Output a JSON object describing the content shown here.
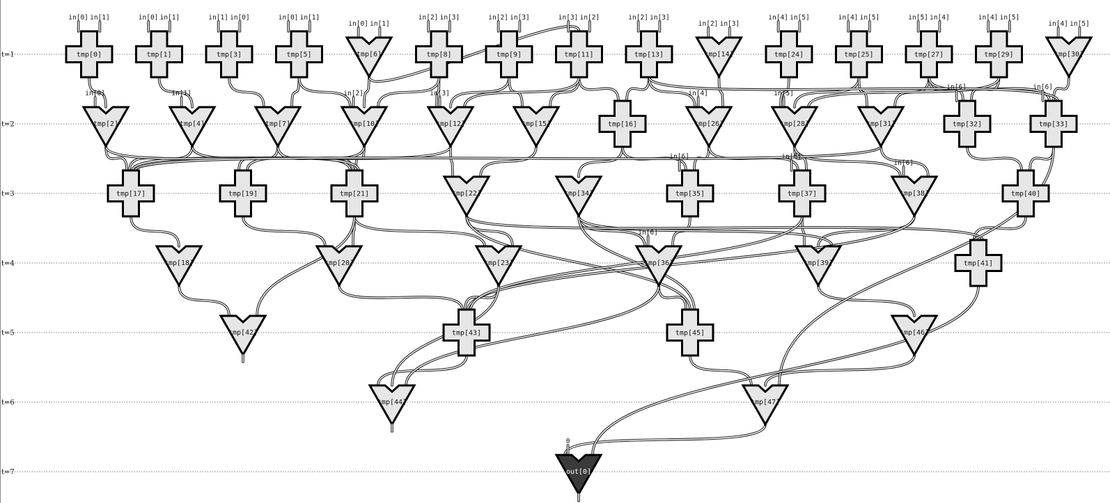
{
  "colors": {
    "gate_fill": "#e6e6e6",
    "output_fill": "#3a3a3a",
    "gate_stroke": "#000000",
    "grid": "#555555"
  },
  "rows": [
    {
      "label": "t=1"
    },
    {
      "label": "t=2"
    },
    {
      "label": "t=3"
    },
    {
      "label": "t=4"
    },
    {
      "label": "t=5"
    },
    {
      "label": "t=6"
    },
    {
      "label": "t=7"
    }
  ],
  "gates": [
    {
      "id": "tmp0",
      "label": "tmp[0]",
      "shape": "cross",
      "row": 1,
      "col": 0,
      "inputs": [
        "in[0]",
        "in[1]"
      ]
    },
    {
      "id": "tmp1",
      "label": "tmp[1]",
      "shape": "cross",
      "row": 1,
      "col": 1,
      "inputs": [
        "in[0]",
        "in[1]"
      ]
    },
    {
      "id": "tmp3",
      "label": "tmp[3]",
      "shape": "cross",
      "row": 1,
      "col": 2,
      "inputs": [
        "in[1]",
        "in[0]"
      ]
    },
    {
      "id": "tmp5",
      "label": "tmp[5]",
      "shape": "cross",
      "row": 1,
      "col": 3,
      "inputs": [
        "in[0]",
        "in[1]"
      ]
    },
    {
      "id": "tmp6",
      "label": "tmp[6]",
      "shape": "tri",
      "row": 1,
      "col": 4,
      "inputs": [
        "in[0]",
        "in[1]"
      ]
    },
    {
      "id": "tmp8",
      "label": "tmp[8]",
      "shape": "cross",
      "row": 1,
      "col": 5,
      "inputs": [
        "in[2]",
        "in[3]"
      ]
    },
    {
      "id": "tmp9",
      "label": "tmp[9]",
      "shape": "cross",
      "row": 1,
      "col": 6,
      "inputs": [
        "in[2]",
        "in[3]"
      ]
    },
    {
      "id": "tmp11",
      "label": "tmp[11]",
      "shape": "cross",
      "row": 1,
      "col": 7,
      "inputs": [
        "in[3]",
        "in[2]"
      ]
    },
    {
      "id": "tmp13",
      "label": "tmp[13]",
      "shape": "cross",
      "row": 1,
      "col": 8,
      "inputs": [
        "in[2]",
        "in[3]"
      ]
    },
    {
      "id": "tmp14",
      "label": "tmp[14]",
      "shape": "tri",
      "row": 1,
      "col": 9,
      "inputs": [
        "in[2]",
        "in[3]"
      ]
    },
    {
      "id": "tmp24",
      "label": "tmp[24]",
      "shape": "cross",
      "row": 1,
      "col": 10,
      "inputs": [
        "in[4]",
        "in[5]"
      ]
    },
    {
      "id": "tmp25",
      "label": "tmp[25]",
      "shape": "cross",
      "row": 1,
      "col": 11,
      "inputs": [
        "in[4]",
        "in[5]"
      ]
    },
    {
      "id": "tmp27",
      "label": "tmp[27]",
      "shape": "cross",
      "row": 1,
      "col": 12,
      "inputs": [
        "in[5]",
        "in[4]"
      ]
    },
    {
      "id": "tmp29",
      "label": "tmp[29]",
      "shape": "cross",
      "row": 1,
      "col": 13,
      "inputs": [
        "in[4]",
        "in[5]"
      ]
    },
    {
      "id": "tmp30",
      "label": "tmp[30]",
      "shape": "tri",
      "row": 1,
      "col": 14,
      "inputs": [
        "in[4]",
        "in[5]"
      ]
    },
    {
      "id": "tmp2",
      "label": "tmp[2]",
      "shape": "tri",
      "row": 2,
      "col": 0.5,
      "inputs": [
        "in[0]"
      ]
    },
    {
      "id": "tmp4",
      "label": "tmp[4]",
      "shape": "tri",
      "row": 2,
      "col": 1.5,
      "inputs": [
        "in[1]"
      ]
    },
    {
      "id": "tmp7",
      "label": "tmp[7]",
      "shape": "tri",
      "row": 2,
      "col": 2.5,
      "inputs": []
    },
    {
      "id": "tmp10",
      "label": "tmp[10]",
      "shape": "tri",
      "row": 2,
      "col": 3.5,
      "inputs": [
        "in[2]"
      ]
    },
    {
      "id": "tmp12",
      "label": "tmp[12]",
      "shape": "tri",
      "row": 2,
      "col": 4.5,
      "inputs": [
        "in[3]"
      ]
    },
    {
      "id": "tmp15",
      "label": "tmp[15]",
      "shape": "tri",
      "row": 2,
      "col": 5.5,
      "inputs": []
    },
    {
      "id": "tmp16",
      "label": "tmp[16]",
      "shape": "cross",
      "row": 2,
      "col": 6.5,
      "inputs": []
    },
    {
      "id": "tmp26",
      "label": "tmp[26]",
      "shape": "tri",
      "row": 2,
      "col": 7.5,
      "inputs": [
        "in[4]"
      ]
    },
    {
      "id": "tmp28",
      "label": "tmp[28]",
      "shape": "tri",
      "row": 2,
      "col": 8.5,
      "inputs": [
        "in[5]"
      ]
    },
    {
      "id": "tmp31",
      "label": "tmp[31]",
      "shape": "tri",
      "row": 2,
      "col": 9.5,
      "inputs": []
    },
    {
      "id": "tmp32",
      "label": "tmp[32]",
      "shape": "cross",
      "row": 2,
      "col": 10.5,
      "inputs": [
        "in[6]"
      ]
    },
    {
      "id": "tmp33",
      "label": "tmp[33]",
      "shape": "cross",
      "row": 2,
      "col": 11.5,
      "inputs": [
        "in[6]"
      ]
    },
    {
      "id": "tmp17",
      "label": "tmp[17]",
      "shape": "cross",
      "row": 3,
      "col": 0,
      "inputs": []
    },
    {
      "id": "tmp19",
      "label": "tmp[19]",
      "shape": "cross",
      "row": 3,
      "col": 1,
      "inputs": []
    },
    {
      "id": "tmp21",
      "label": "tmp[21]",
      "shape": "cross",
      "row": 3,
      "col": 2,
      "inputs": []
    },
    {
      "id": "tmp22",
      "label": "tmp[22]",
      "shape": "tri",
      "row": 3,
      "col": 3,
      "inputs": []
    },
    {
      "id": "tmp34",
      "label": "tmp[34]",
      "shape": "tri",
      "row": 3,
      "col": 4,
      "inputs": []
    },
    {
      "id": "tmp35",
      "label": "tmp[35]",
      "shape": "cross",
      "row": 3,
      "col": 5,
      "inputs": [
        "in[6]"
      ]
    },
    {
      "id": "tmp37",
      "label": "tmp[37]",
      "shape": "cross",
      "row": 3,
      "col": 6,
      "inputs": [
        "in[6]"
      ]
    },
    {
      "id": "tmp38",
      "label": "tmp[38]",
      "shape": "tri",
      "row": 3,
      "col": 7,
      "inputs": [
        "in[6]"
      ]
    },
    {
      "id": "tmp40",
      "label": "tmp[40]",
      "shape": "cross",
      "row": 3,
      "col": 8,
      "inputs": []
    },
    {
      "id": "tmp18",
      "label": "tmp[18]",
      "shape": "tri",
      "row": 4,
      "col": 0,
      "inputs": []
    },
    {
      "id": "tmp20",
      "label": "tmp[20]",
      "shape": "tri",
      "row": 4,
      "col": 1,
      "inputs": []
    },
    {
      "id": "tmp23",
      "label": "tmp[23]",
      "shape": "tri",
      "row": 4,
      "col": 2,
      "inputs": []
    },
    {
      "id": "tmp36",
      "label": "tmp[36]",
      "shape": "tri",
      "row": 4,
      "col": 3,
      "inputs": [
        "in[6]"
      ]
    },
    {
      "id": "tmp39",
      "label": "tmp[39]",
      "shape": "tri",
      "row": 4,
      "col": 4,
      "inputs": []
    },
    {
      "id": "tmp41",
      "label": "tmp[41]",
      "shape": "cross",
      "row": 4,
      "col": 5,
      "inputs": []
    },
    {
      "id": "tmp42",
      "label": "tmp[42]",
      "shape": "tri",
      "row": 5,
      "col": 0,
      "inputs": []
    },
    {
      "id": "tmp43",
      "label": "tmp[43]",
      "shape": "cross",
      "row": 5,
      "col": 1,
      "inputs": []
    },
    {
      "id": "tmp45",
      "label": "tmp[45]",
      "shape": "cross",
      "row": 5,
      "col": 2,
      "inputs": []
    },
    {
      "id": "tmp46",
      "label": "tmp[46]",
      "shape": "tri",
      "row": 5,
      "col": 3,
      "inputs": []
    },
    {
      "id": "tmp44",
      "label": "tmp[44]",
      "shape": "tri",
      "row": 6,
      "col": 0,
      "inputs": []
    },
    {
      "id": "tmp47",
      "label": "tmp[47]",
      "shape": "tri",
      "row": 6,
      "col": 1,
      "inputs": []
    },
    {
      "id": "out0",
      "label": "out[0]",
      "shape": "tri",
      "row": 7,
      "col": 0,
      "dark": true,
      "inputs": [
        "0"
      ]
    }
  ],
  "edges": [
    [
      "tmp0",
      "tmp2"
    ],
    [
      "tmp1",
      "tmp4"
    ],
    [
      "tmp3",
      "tmp7"
    ],
    [
      "tmp5",
      "tmp7"
    ],
    [
      "tmp5",
      "tmp10"
    ],
    [
      "tmp6",
      "tmp10"
    ],
    [
      "tmp8",
      "tmp12"
    ],
    [
      "tmp8",
      "tmp10"
    ],
    [
      "tmp9",
      "tmp12"
    ],
    [
      "tmp9",
      "tmp15"
    ],
    [
      "tmp11",
      "tmp15"
    ],
    [
      "tmp11",
      "tmp16"
    ],
    [
      "tmp11",
      "tmp12"
    ],
    [
      "tmp13",
      "tmp16"
    ],
    [
      "tmp13",
      "tmp26"
    ],
    [
      "tmp14",
      "tmp26"
    ],
    [
      "tmp24",
      "tmp28"
    ],
    [
      "tmp25",
      "tmp28"
    ],
    [
      "tmp25",
      "tmp31"
    ],
    [
      "tmp27",
      "tmp31"
    ],
    [
      "tmp27",
      "tmp32"
    ],
    [
      "tmp27",
      "tmp33"
    ],
    [
      "tmp29",
      "tmp32"
    ],
    [
      "tmp29",
      "tmp28"
    ],
    [
      "tmp30",
      "tmp33"
    ],
    [
      "tmp6",
      "tmp11"
    ],
    [
      "tmp13",
      "tmp33"
    ],
    [
      "tmp2",
      "tmp17"
    ],
    [
      "tmp4",
      "tmp17"
    ],
    [
      "tmp4",
      "tmp21"
    ],
    [
      "tmp7",
      "tmp19"
    ],
    [
      "tmp7",
      "tmp21"
    ],
    [
      "tmp10",
      "tmp21"
    ],
    [
      "tmp12",
      "tmp17"
    ],
    [
      "tmp12",
      "tmp22"
    ],
    [
      "tmp15",
      "tmp22"
    ],
    [
      "tmp16",
      "tmp34"
    ],
    [
      "tmp16",
      "tmp35"
    ],
    [
      "tmp26",
      "tmp35"
    ],
    [
      "tmp26",
      "tmp37"
    ],
    [
      "tmp28",
      "tmp37"
    ],
    [
      "tmp28",
      "tmp38"
    ],
    [
      "tmp31",
      "tmp38"
    ],
    [
      "tmp32",
      "tmp40"
    ],
    [
      "tmp33",
      "tmp40"
    ],
    [
      "tmp2",
      "tmp21"
    ],
    [
      "tmp10",
      "tmp19"
    ],
    [
      "tmp31",
      "tmp17"
    ],
    [
      "tmp17",
      "tmp18"
    ],
    [
      "tmp19",
      "tmp20"
    ],
    [
      "tmp21",
      "tmp20"
    ],
    [
      "tmp21",
      "tmp23"
    ],
    [
      "tmp22",
      "tmp23"
    ],
    [
      "tmp34",
      "tmp36"
    ],
    [
      "tmp35",
      "tmp36"
    ],
    [
      "tmp37",
      "tmp39"
    ],
    [
      "tmp38",
      "tmp39"
    ],
    [
      "tmp40",
      "tmp41"
    ],
    [
      "tmp34",
      "tmp39"
    ],
    [
      "tmp22",
      "tmp41"
    ],
    [
      "tmp18",
      "tmp42"
    ],
    [
      "tmp21",
      "tmp42"
    ],
    [
      "tmp20",
      "tmp43"
    ],
    [
      "tmp23",
      "tmp43"
    ],
    [
      "tmp36",
      "tmp45"
    ],
    [
      "tmp22",
      "tmp45"
    ],
    [
      "tmp39",
      "tmp46"
    ],
    [
      "tmp38",
      "tmp43"
    ],
    [
      "tmp34",
      "tmp45"
    ],
    [
      "tmp37",
      "tmp43"
    ],
    [
      "tmp43",
      "tmp44"
    ],
    [
      "tmp23",
      "tmp44"
    ],
    [
      "tmp45",
      "tmp47"
    ],
    [
      "tmp46",
      "tmp47"
    ],
    [
      "tmp36",
      "tmp44"
    ],
    [
      "tmp33",
      "tmp47"
    ],
    [
      "tmp47",
      "out0"
    ],
    [
      "tmp41",
      "out0"
    ]
  ]
}
